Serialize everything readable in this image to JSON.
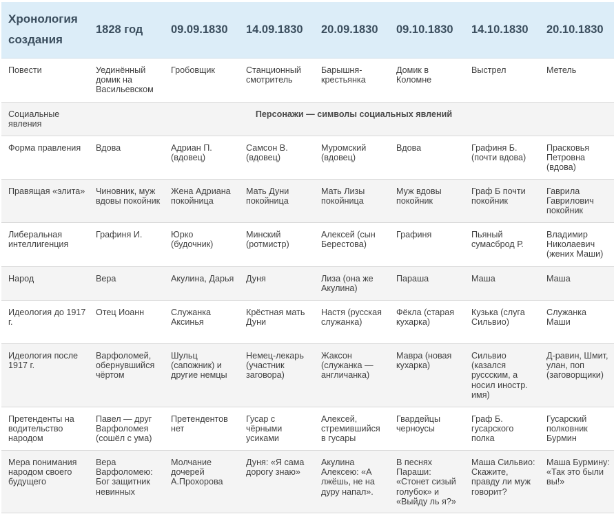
{
  "header": {
    "title": "Хронология создания",
    "dates": [
      "1828 год",
      "09.09.1830",
      "14.09.1830",
      "20.09.1830",
      "09.10.1830",
      "14.10.1830",
      "20.10.1830"
    ]
  },
  "rows": [
    {
      "label": "Повести",
      "cells": [
        "Уединённый домик на Васильевском",
        "Гробовщик",
        "Станционный смотритель",
        "Барышня-крестьянка",
        "Домик в Коломне",
        "Выстрел",
        "Метель"
      ]
    },
    {
      "label": "Социальные явления",
      "span_text": "Персонажи — символы социальных явлений"
    },
    {
      "label": "Форма правления",
      "cells": [
        "Вдова",
        "Адриан П. (вдовец)",
        "Самсон В. (вдовец)",
        "Муромский (вдовец)",
        "Вдова",
        "Графиня Б. (почти вдова)",
        "Прасковья Петровна (вдова)"
      ]
    },
    {
      "label": "Правящая «элита»",
      "cells": [
        "Чиновник, муж вдовы покойник",
        "Жена Адриана покойница",
        "Мать Дуни покойница",
        "Мать Лизы покойница",
        "Муж вдовы покойник",
        "Граф Б почти покойник",
        "Гаврила Гаврилович покойник"
      ]
    },
    {
      "label": "Либеральная интеллигенция",
      "cells": [
        "Графиня И.",
        "Юрко (будочник)",
        "Минский (ротмистр)",
        "Алексей (сын Берестова)",
        "Графиня",
        "Пьяный сумасброд Р.",
        "Владимир Николаевич (жених Маши)"
      ]
    },
    {
      "label": "Народ",
      "cells": [
        "Вера",
        "Акулина, Дарья",
        "Дуня",
        "Лиза (она же Акулина)",
        "Параша",
        "Маша",
        "Маша"
      ]
    },
    {
      "label": "Идеология до 1917 г.",
      "cells": [
        "Отец Иоанн",
        "Служанка Аксинья",
        "Крёстная мать Дуни",
        "Настя (русская служанка)",
        "Фёкла (старая кухарка)",
        "Кузька (слуга Сильвио)",
        "Служанка Маши"
      ]
    },
    {
      "label": "Идеология после 1917 г.",
      "cells": [
        "Варфоломей, обернувшийся чёртом",
        "Шульц (сапожник) и другие немцы",
        "Немец-лекарь (участник заговора)",
        "Жаксон (служанка — англичанка)",
        "Мавра (новая кухарка)",
        "Сильвио (казался русcским, а носил иностр. имя)",
        "Д-равин, Шмит, улан, поп (заговорщики)"
      ]
    },
    {
      "label": "Претенденты на водительство народом",
      "cells": [
        "Павел — друг Варфоломея (сошёл с ума)",
        "Претендентов нет",
        "Гусар с чёрными усиками",
        "Алексей, стремившийся в гусары",
        "Гвардейцы черноусы",
        "Граф Б. гусарского полка",
        "Гусарский полковник Бурмин"
      ]
    },
    {
      "label": "Мера понимания народом своего будущего",
      "cells": [
        "Вера Варфоломею: Бог защитник невинных",
        "Молчание дочерей А.Прохорова",
        "Дуня: «Я сама дорогу знаю»",
        "Акулина Алексею: «А лжёшь, не на дуру напал».",
        "В песнях Параши: «Стонет сизый голубок» и «Выйду ль я?»",
        "Маша Сильвио: Скажите, правду ли муж говорит?",
        "Маша Бурмину: «Так это были вы!»"
      ]
    }
  ]
}
